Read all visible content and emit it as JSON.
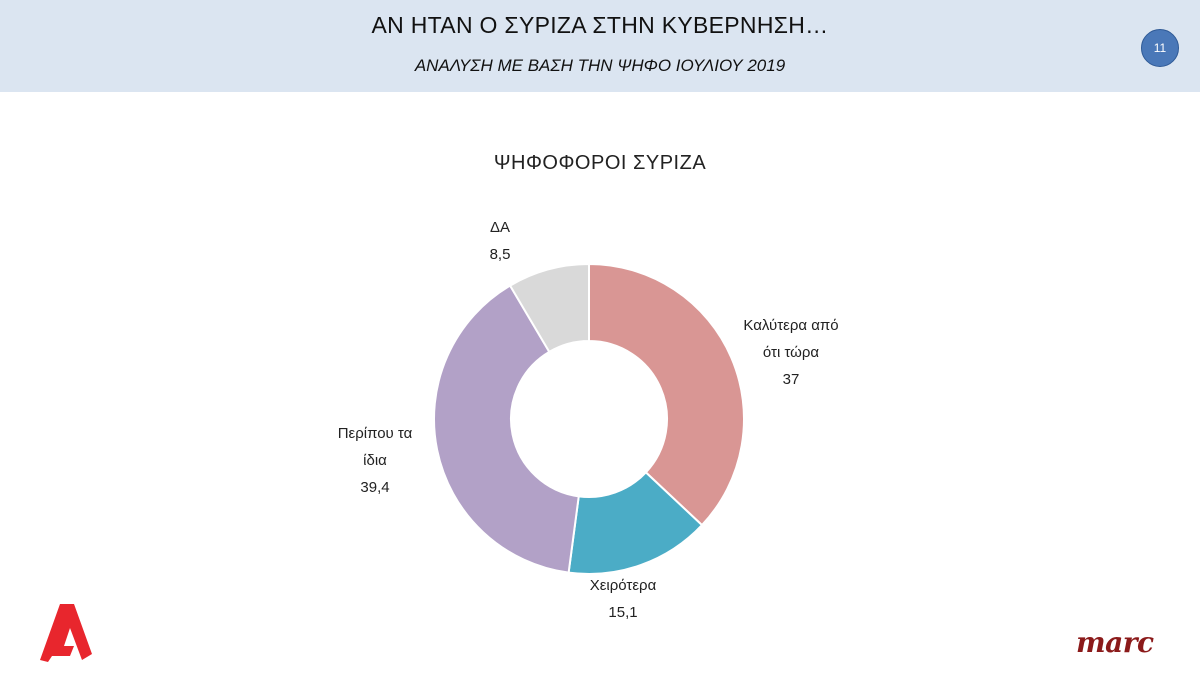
{
  "header": {
    "title": "ΑΝ ΗΤΑΝ Ο ΣΥΡΙΖΑ ΣΤΗΝ ΚΥΒΕΡΝΗΣΗ…",
    "subtitle": "ΑΝΑΛΥΣΗ ΜΕ ΒΑΣΗ ΤΗΝ ΨΗΦΟ ΙΟΥΛΙΟΥ 2019",
    "page_number": "11"
  },
  "chart_data": {
    "type": "pie",
    "donut": true,
    "title": "ΨΗΦΟΦΟΡΟΙ ΣΥΡΙΖΑ",
    "legend": "none",
    "slices": [
      {
        "label": "Καλύτερα από ότι τώρα",
        "label_lines": [
          "Καλύτερα από",
          "ότι τώρα"
        ],
        "value": 37,
        "value_text": "37",
        "color": "#d99694"
      },
      {
        "label": "Χειρότερα",
        "label_lines": [
          "Χειρότερα"
        ],
        "value": 15.1,
        "value_text": "15,1",
        "color": "#4bacc6"
      },
      {
        "label": "Περίπου τα ίδια",
        "label_lines": [
          "Περίπου τα",
          "ίδια"
        ],
        "value": 39.4,
        "value_text": "39,4",
        "color": "#b2a1c7"
      },
      {
        "label": "ΔΑ",
        "label_lines": [
          "ΔΑ"
        ],
        "value": 8.5,
        "value_text": "8,5",
        "color": "#d9d9d9"
      }
    ]
  },
  "logos": {
    "left": "Alpha TV logo",
    "right": "marc"
  }
}
